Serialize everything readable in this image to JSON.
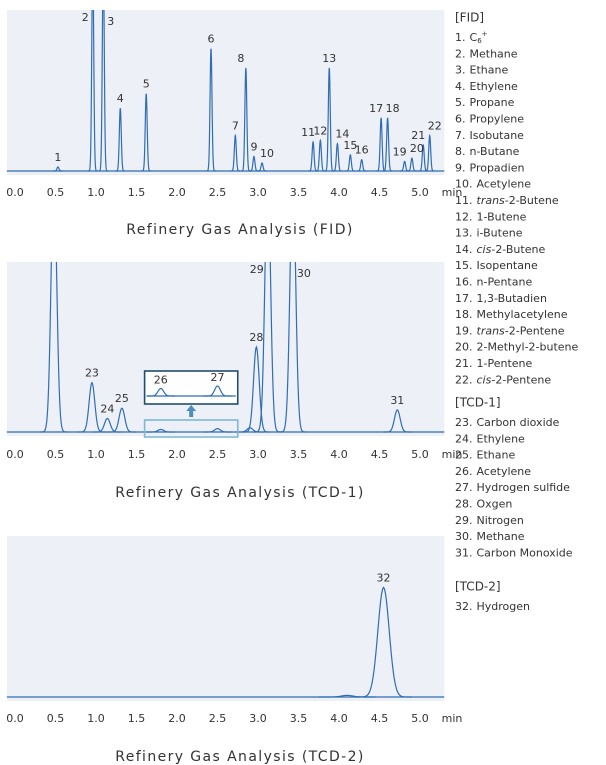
{
  "chart_data": [
    {
      "type": "chromatogram",
      "title": "Refinery Gas Analysis (FID)",
      "xlabel": "min",
      "xlim": [
        -0.1,
        5.3
      ],
      "ylim": [
        0,
        100
      ],
      "xticks": [
        {
          "value": 0,
          "label": "0.0"
        },
        0.5,
        {
          "value": 1,
          "label": "1.0"
        },
        1.5,
        {
          "value": 2,
          "label": "2.0"
        },
        2.5,
        {
          "value": 3,
          "label": "3.0"
        },
        3.5,
        {
          "value": 4,
          "label": "4.0"
        },
        4.5,
        {
          "value": 5,
          "label": "5.0"
        }
      ],
      "color": "#2f6db5",
      "background": "#edf0f6",
      "peak_width": 0.012,
      "peaks": [
        {
          "label": "1",
          "x": 0.53,
          "height": 2.5
        },
        {
          "label": "2",
          "x": 0.96,
          "height": 130
        },
        {
          "label": "3",
          "x": 1.09,
          "height": 130
        },
        {
          "label": "4",
          "x": 1.3,
          "height": 39
        },
        {
          "label": "5",
          "x": 1.62,
          "height": 48
        },
        {
          "label": "6",
          "x": 2.42,
          "height": 76
        },
        {
          "label": "7",
          "x": 2.72,
          "height": 22
        },
        {
          "label": "8",
          "x": 2.85,
          "height": 64
        },
        {
          "label": "9",
          "x": 2.95,
          "height": 9
        },
        {
          "label": "10",
          "x": 3.05,
          "height": 5
        },
        {
          "label": "11",
          "x": 3.68,
          "height": 18
        },
        {
          "label": "12",
          "x": 3.77,
          "height": 19
        },
        {
          "label": "13",
          "x": 3.88,
          "height": 64
        },
        {
          "label": "14",
          "x": 3.98,
          "height": 17
        },
        {
          "label": "15",
          "x": 4.14,
          "height": 10
        },
        {
          "label": "16",
          "x": 4.28,
          "height": 7
        },
        {
          "label": "17",
          "x": 4.52,
          "height": 33
        },
        {
          "label": "18",
          "x": 4.6,
          "height": 33
        },
        {
          "label": "19",
          "x": 4.81,
          "height": 6
        },
        {
          "label": "20",
          "x": 4.9,
          "height": 8
        },
        {
          "label": "21",
          "x": 5.04,
          "height": 16
        },
        {
          "label": "22",
          "x": 5.12,
          "height": 22
        }
      ]
    },
    {
      "type": "chromatogram",
      "title": "Refinery Gas Analysis (TCD-1)",
      "xlabel": "min",
      "xlim": [
        -0.1,
        5.3
      ],
      "ylim": [
        0,
        100
      ],
      "xticks": [
        {
          "value": 0,
          "label": "0.0"
        },
        0.5,
        {
          "value": 1,
          "label": "1.0"
        },
        1.5,
        {
          "value": 2,
          "label": "2.0"
        },
        2.5,
        {
          "value": 3,
          "label": "3.0"
        },
        3.5,
        {
          "value": 4,
          "label": "4.0"
        },
        4.5,
        {
          "value": 5,
          "label": "5.0"
        }
      ],
      "color": "#2f6db5",
      "background": "#edf0f6",
      "peak_width": 0.035,
      "peaks": [
        {
          "label": null,
          "x": 0.48,
          "height": 150
        },
        {
          "label": "23",
          "x": 0.95,
          "height": 29
        },
        {
          "label": "24",
          "x": 1.14,
          "height": 8
        },
        {
          "label": "25",
          "x": 1.32,
          "height": 14
        },
        {
          "label": "26",
          "x": 1.8,
          "height": 1.5,
          "inset": true
        },
        {
          "label": "27",
          "x": 2.5,
          "height": 2,
          "inset": true
        },
        {
          "label": null,
          "x": 2.9,
          "height": 2.5
        },
        {
          "label": "28",
          "x": 2.98,
          "height": 50
        },
        {
          "label": "29",
          "x": 3.12,
          "height": 150
        },
        {
          "label": "30",
          "x": 3.43,
          "height": 150
        },
        {
          "label": "31",
          "x": 4.72,
          "height": 13
        }
      ]
    },
    {
      "type": "chromatogram",
      "title": "Refinery Gas Analysis (TCD-2)",
      "xlabel": "min",
      "xlim": [
        -0.1,
        5.3
      ],
      "ylim": [
        0,
        100
      ],
      "xticks": [
        {
          "value": 0,
          "label": "0.0"
        },
        0.5,
        {
          "value": 1,
          "label": "1.0"
        },
        1.5,
        {
          "value": 2,
          "label": "2.0"
        },
        2.5,
        {
          "value": 3,
          "label": "3.0"
        },
        3.5,
        {
          "value": 4,
          "label": "4.0"
        },
        4.5,
        {
          "value": 5,
          "label": "5.0"
        }
      ],
      "color": "#2f6db5",
      "background": "#edf0f6",
      "peak_width": 0.07,
      "peaks": [
        {
          "label": null,
          "x": 4.1,
          "height": 1
        },
        {
          "label": "32",
          "x": 4.55,
          "height": 68
        }
      ]
    }
  ],
  "legend": [
    {
      "heading": "[FID]",
      "items": [
        {
          "num": "1.",
          "name": "C",
          "sub": "6",
          "sup": "+"
        },
        {
          "num": "2.",
          "name": "Methane"
        },
        {
          "num": "3.",
          "name": "Ethane"
        },
        {
          "num": "4.",
          "name": "Ethylene"
        },
        {
          "num": "5.",
          "name": "Propane"
        },
        {
          "num": "6.",
          "name": "Propylene"
        },
        {
          "num": "7.",
          "name": "Isobutane"
        },
        {
          "num": "8.",
          "name": "n-Butane"
        },
        {
          "num": "9.",
          "name": "Propadien"
        },
        {
          "num": "10.",
          "name": "Acetylene"
        },
        {
          "num": "11.",
          "italic": "trans",
          "name": "-2-Butene"
        },
        {
          "num": "12.",
          "name": "1-Butene"
        },
        {
          "num": "13.",
          "name": "i-Butene"
        },
        {
          "num": "14.",
          "italic": "cis",
          "name": "-2-Butene"
        },
        {
          "num": "15.",
          "name": "Isopentane"
        },
        {
          "num": "16.",
          "name": "n-Pentane"
        },
        {
          "num": "17.",
          "name": "1,3-Butadien"
        },
        {
          "num": "18.",
          "name": "Methylacetylene"
        },
        {
          "num": "19.",
          "italic": "trans",
          "name": "-2-Pentene"
        },
        {
          "num": "20.",
          "name": "2-Methyl-2-butene"
        },
        {
          "num": "21.",
          "name": "1-Pentene"
        },
        {
          "num": "22.",
          "italic": "cis",
          "name": "-2-Pentene"
        }
      ]
    },
    {
      "heading": "[TCD-1]",
      "items": [
        {
          "num": "23.",
          "name": "Carbon dioxide"
        },
        {
          "num": "24.",
          "name": "Ethylene"
        },
        {
          "num": "25.",
          "name": "Ethane"
        },
        {
          "num": "26.",
          "name": "Acetylene"
        },
        {
          "num": "27.",
          "name": "Hydrogen sulfide"
        },
        {
          "num": "28.",
          "name": "Oxgen"
        },
        {
          "num": "29.",
          "name": "Nitrogen"
        },
        {
          "num": "30.",
          "name": "Methane"
        },
        {
          "num": "31.",
          "name": "Carbon Monoxide"
        }
      ]
    },
    {
      "heading": "[TCD-2]",
      "items": [
        {
          "num": "32.",
          "name": "Hydrogen"
        }
      ]
    }
  ]
}
